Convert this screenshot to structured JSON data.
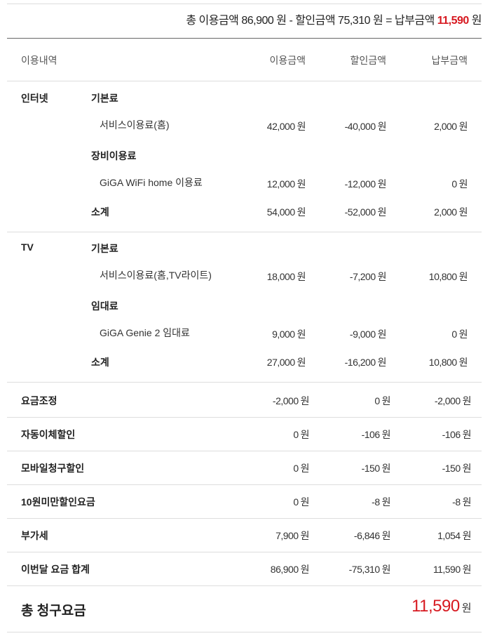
{
  "summary": {
    "prefix": "총 이용금액",
    "usage": "86,900",
    "won": "원",
    "minus": "- 할인금액",
    "discount": "75,310",
    "eq": "= 납부금액",
    "pay": "11,590"
  },
  "header": {
    "col0": "이용내역",
    "col1": "이용금액",
    "col2": "할인금액",
    "col3": "납부금액"
  },
  "sections": [
    {
      "category": "인터넷",
      "groups": [
        {
          "name": "기본료",
          "item": "서비스이용료(홈)",
          "values": [
            "42,000",
            "-40,000",
            "2,000"
          ]
        },
        {
          "name": "장비이용료",
          "item": "GiGA WiFi home 이용료",
          "values": [
            "12,000",
            "-12,000",
            "0"
          ]
        }
      ],
      "subtotal_label": "소계",
      "subtotal": [
        "54,000",
        "-52,000",
        "2,000"
      ]
    },
    {
      "category": "TV",
      "groups": [
        {
          "name": "기본료",
          "item": "서비스이용료(홈,TV라이트)",
          "values": [
            "18,000",
            "-7,200",
            "10,800"
          ]
        },
        {
          "name": "임대료",
          "item": "GiGA Genie 2 임대료",
          "values": [
            "9,000",
            "-9,000",
            "0"
          ]
        }
      ],
      "subtotal_label": "소계",
      "subtotal": [
        "27,000",
        "-16,200",
        "10,800"
      ]
    }
  ],
  "rows": [
    {
      "label": "요금조정",
      "values": [
        "-2,000",
        "0",
        "-2,000"
      ]
    },
    {
      "label": "자동이체할인",
      "values": [
        "0",
        "-106",
        "-106"
      ]
    },
    {
      "label": "모바일청구할인",
      "values": [
        "0",
        "-150",
        "-150"
      ]
    },
    {
      "label": "10원미만할인요금",
      "values": [
        "0",
        "-8",
        "-8"
      ]
    },
    {
      "label": "부가세",
      "values": [
        "7,900",
        "-6,846",
        "1,054"
      ]
    },
    {
      "label": "이번달 요금 합계",
      "values": [
        "86,900",
        "-75,310",
        "11,590"
      ]
    }
  ],
  "currency": "원",
  "total": {
    "label": "총 청구요금",
    "value": "11,590"
  },
  "colors": {
    "accent": "#d71920"
  }
}
